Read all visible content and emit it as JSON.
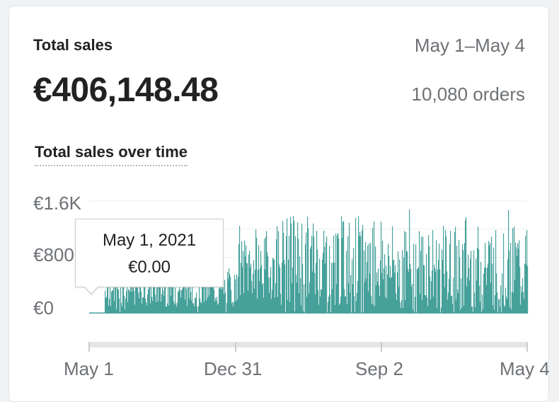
{
  "header": {
    "title": "Total sales",
    "date_range": "May 1–May 4",
    "total": "€406,148.48",
    "orders": "10,080 orders"
  },
  "chart_section": {
    "title": "Total sales over time"
  },
  "tooltip": {
    "date": "May 1, 2021",
    "value": "€0.00"
  },
  "colors": {
    "series": "#47a19b",
    "axis_bar": "#e4e5e7",
    "grid": "#eceef0"
  },
  "chart_data": {
    "type": "bar",
    "y_ticks": [
      "€1.6K",
      "€800",
      "€0"
    ],
    "x_ticks": [
      "May 1",
      "Dec 31",
      "Sep 2",
      "May 4"
    ],
    "ylim": [
      0,
      1600
    ],
    "grid": true,
    "series": [
      {
        "color": "#47a19b",
        "segments": [
          {
            "from": "May 1",
            "to": "Jun 1",
            "level": 0,
            "noise": 0
          },
          {
            "from": "Jun 1",
            "to": "Dec 31",
            "level": 350,
            "noise": 250
          },
          {
            "from": "Dec 31",
            "to": "Mar 1",
            "level": 650,
            "noise": 450
          },
          {
            "from": "Mar 1",
            "to": "Sep 2",
            "level": 750,
            "noise": 650
          },
          {
            "from": "Sep 2",
            "to": "May 4",
            "level": 650,
            "noise": 600
          }
        ]
      }
    ]
  }
}
